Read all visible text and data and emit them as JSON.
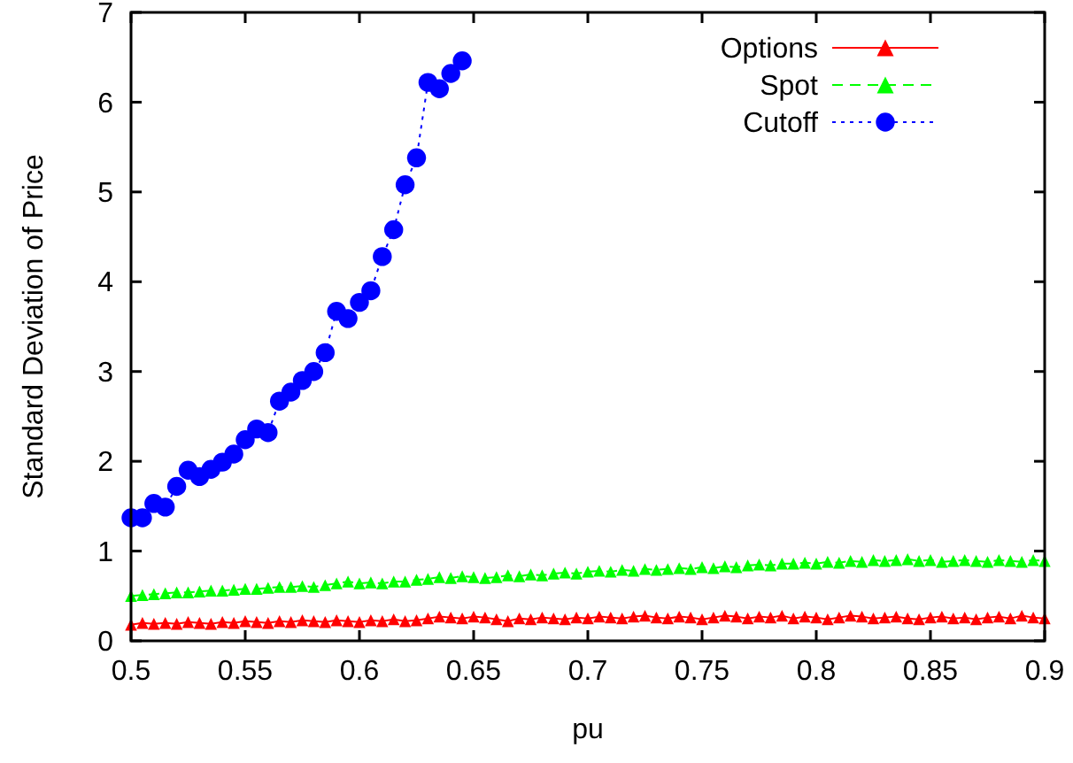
{
  "chart_data": {
    "type": "line",
    "xlabel": "pu",
    "ylabel": "Standard Deviation of Price",
    "x": [
      0.5,
      0.505,
      0.51,
      0.515,
      0.52,
      0.525,
      0.53,
      0.535,
      0.54,
      0.545,
      0.55,
      0.555,
      0.56,
      0.565,
      0.57,
      0.575,
      0.58,
      0.585,
      0.59,
      0.595,
      0.6,
      0.605,
      0.61,
      0.615,
      0.62,
      0.625,
      0.63,
      0.635,
      0.64,
      0.645,
      0.65,
      0.655,
      0.66,
      0.665,
      0.67,
      0.675,
      0.68,
      0.685,
      0.69,
      0.695,
      0.7,
      0.705,
      0.71,
      0.715,
      0.72,
      0.725,
      0.73,
      0.735,
      0.74,
      0.745,
      0.75,
      0.755,
      0.76,
      0.765,
      0.77,
      0.775,
      0.78,
      0.785,
      0.79,
      0.795,
      0.8,
      0.805,
      0.81,
      0.815,
      0.82,
      0.825,
      0.83,
      0.835,
      0.84,
      0.845,
      0.85,
      0.855,
      0.86,
      0.865,
      0.87,
      0.875,
      0.88,
      0.885,
      0.89,
      0.895,
      0.9
    ],
    "series": [
      {
        "name": "Options",
        "color": "#ff0000",
        "marker": "triangle",
        "line_style": "solid",
        "values": [
          0.18,
          0.2,
          0.19,
          0.2,
          0.19,
          0.21,
          0.2,
          0.19,
          0.21,
          0.2,
          0.22,
          0.21,
          0.2,
          0.22,
          0.21,
          0.23,
          0.22,
          0.21,
          0.23,
          0.22,
          0.21,
          0.23,
          0.22,
          0.24,
          0.22,
          0.23,
          0.25,
          0.27,
          0.26,
          0.25,
          0.27,
          0.26,
          0.24,
          0.22,
          0.25,
          0.24,
          0.26,
          0.25,
          0.24,
          0.26,
          0.25,
          0.27,
          0.26,
          0.25,
          0.27,
          0.28,
          0.26,
          0.25,
          0.27,
          0.26,
          0.24,
          0.26,
          0.28,
          0.27,
          0.25,
          0.27,
          0.26,
          0.28,
          0.25,
          0.27,
          0.26,
          0.24,
          0.26,
          0.28,
          0.27,
          0.25,
          0.26,
          0.27,
          0.25,
          0.24,
          0.26,
          0.27,
          0.25,
          0.26,
          0.24,
          0.26,
          0.27,
          0.25,
          0.28,
          0.26,
          0.25
        ]
      },
      {
        "name": "Spot",
        "color": "#00ff00",
        "marker": "triangle",
        "line_style": "dashed",
        "values": [
          0.5,
          0.51,
          0.52,
          0.53,
          0.54,
          0.54,
          0.55,
          0.56,
          0.56,
          0.57,
          0.58,
          0.58,
          0.59,
          0.6,
          0.6,
          0.61,
          0.6,
          0.62,
          0.64,
          0.66,
          0.64,
          0.65,
          0.64,
          0.66,
          0.66,
          0.68,
          0.69,
          0.71,
          0.7,
          0.72,
          0.71,
          0.7,
          0.71,
          0.73,
          0.72,
          0.74,
          0.73,
          0.75,
          0.76,
          0.75,
          0.77,
          0.78,
          0.77,
          0.79,
          0.78,
          0.8,
          0.79,
          0.8,
          0.81,
          0.8,
          0.82,
          0.81,
          0.83,
          0.82,
          0.84,
          0.85,
          0.84,
          0.86,
          0.86,
          0.87,
          0.86,
          0.88,
          0.87,
          0.89,
          0.88,
          0.9,
          0.89,
          0.9,
          0.91,
          0.89,
          0.9,
          0.88,
          0.89,
          0.9,
          0.89,
          0.88,
          0.9,
          0.89,
          0.88,
          0.9,
          0.89
        ]
      },
      {
        "name": "Cutoff",
        "color": "#0000ff",
        "marker": "circle",
        "line_style": "dotted",
        "x": [
          0.5,
          0.505,
          0.51,
          0.515,
          0.52,
          0.525,
          0.53,
          0.535,
          0.54,
          0.545,
          0.55,
          0.555,
          0.56,
          0.565,
          0.57,
          0.575,
          0.58,
          0.585,
          0.59,
          0.595,
          0.6,
          0.605,
          0.61,
          0.615,
          0.62,
          0.625,
          0.63,
          0.635,
          0.64,
          0.645
        ],
        "values": [
          1.37,
          1.37,
          1.53,
          1.49,
          1.72,
          1.9,
          1.83,
          1.91,
          1.99,
          2.08,
          2.24,
          2.36,
          2.32,
          2.67,
          2.77,
          2.9,
          3.0,
          3.21,
          3.67,
          3.59,
          3.77,
          3.9,
          4.28,
          4.58,
          5.08,
          5.38,
          6.22,
          6.15,
          6.32,
          6.46
        ]
      }
    ],
    "xlim": [
      0.5,
      0.9
    ],
    "xticks": [
      0.5,
      0.55,
      0.6,
      0.65,
      0.7,
      0.75,
      0.8,
      0.85,
      0.9
    ],
    "ylim": [
      0,
      7
    ],
    "yticks": [
      0,
      1,
      2,
      3,
      4,
      5,
      6,
      7
    ],
    "grid": false,
    "legend": "top right"
  }
}
